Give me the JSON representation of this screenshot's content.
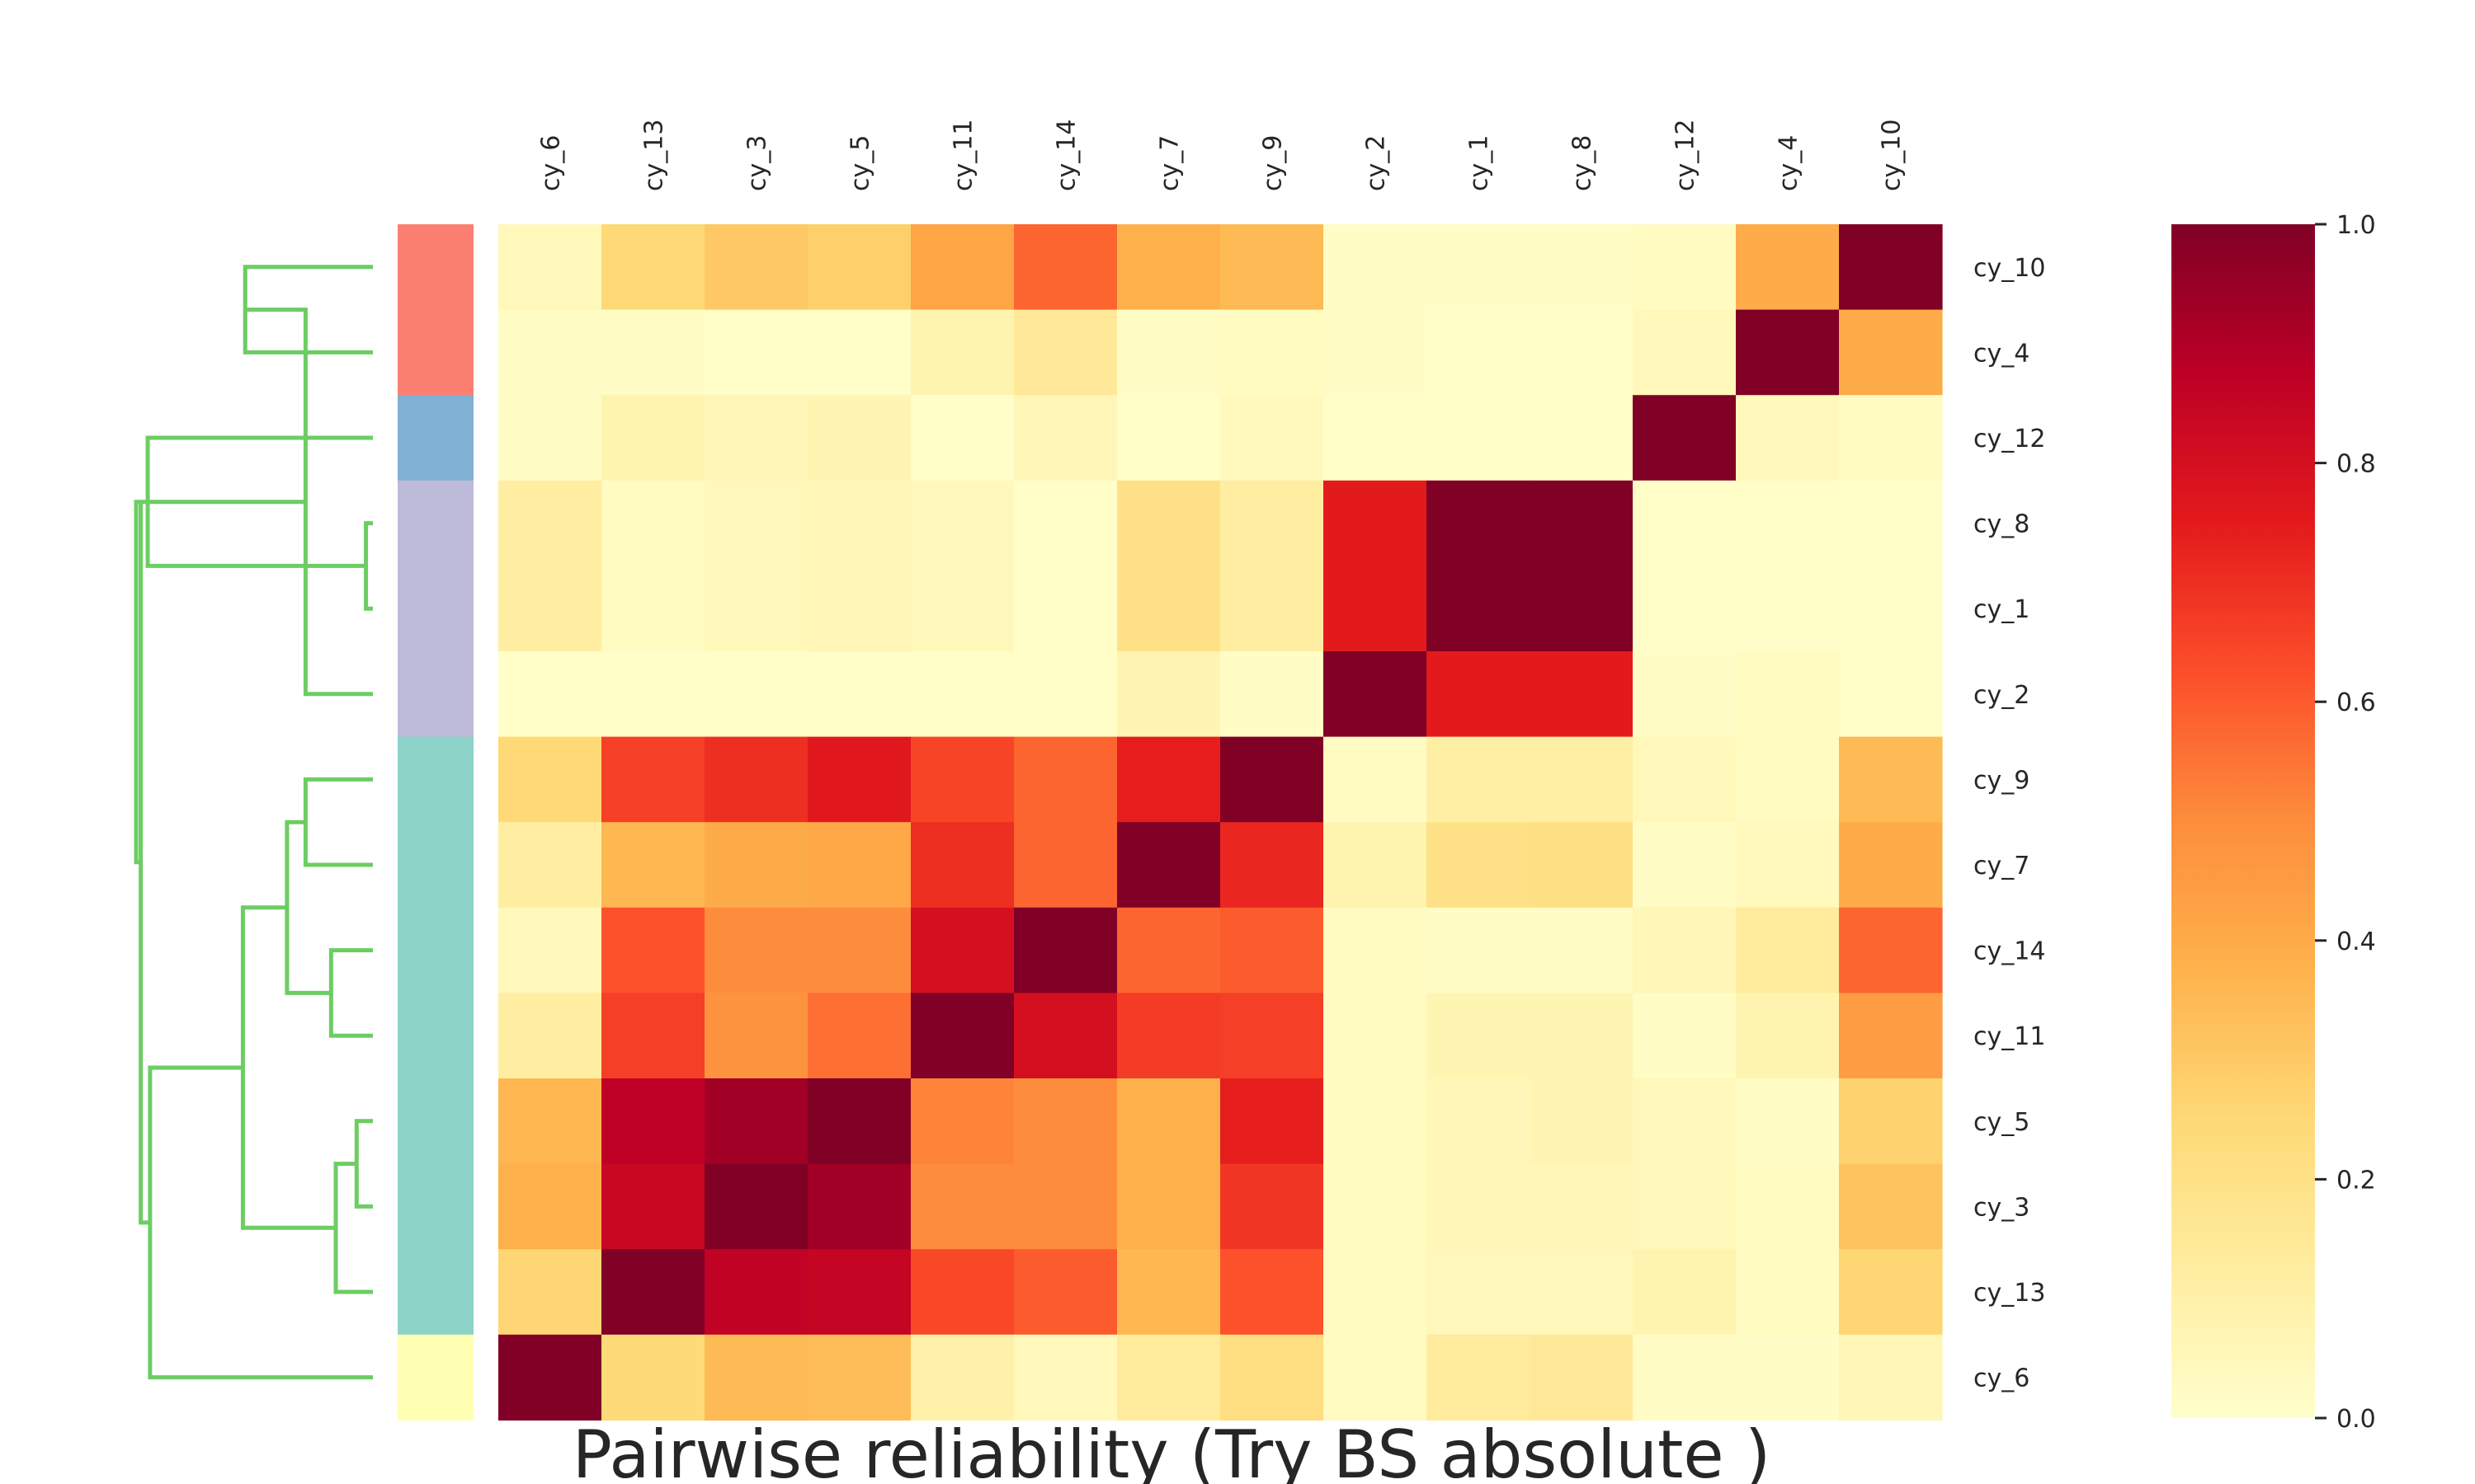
{
  "chart_data": {
    "type": "heatmap",
    "title": "Pairwise reliability (Try BS absolute )",
    "columns": [
      "cy_6",
      "cy_13",
      "cy_3",
      "cy_5",
      "cy_11",
      "cy_14",
      "cy_7",
      "cy_9",
      "cy_2",
      "cy_1",
      "cy_8",
      "cy_12",
      "cy_4",
      "cy_10"
    ],
    "rows": [
      "cy_10",
      "cy_4",
      "cy_12",
      "cy_8",
      "cy_1",
      "cy_2",
      "cy_9",
      "cy_7",
      "cy_14",
      "cy_11",
      "cy_5",
      "cy_3",
      "cy_13",
      "cy_6"
    ],
    "values": [
      [
        0.05,
        0.25,
        0.3,
        0.28,
        0.42,
        0.58,
        0.38,
        0.35,
        0.02,
        0.02,
        0.02,
        0.03,
        0.4,
        1.0
      ],
      [
        0.02,
        0.02,
        0.01,
        0.01,
        0.08,
        0.15,
        0.02,
        0.03,
        0.02,
        0.01,
        0.01,
        0.05,
        1.0,
        0.4
      ],
      [
        0.02,
        0.08,
        0.06,
        0.07,
        0.01,
        0.06,
        0.01,
        0.04,
        0.01,
        0.01,
        0.01,
        1.0,
        0.05,
        0.03
      ],
      [
        0.12,
        0.03,
        0.05,
        0.06,
        0.05,
        0.01,
        0.2,
        0.12,
        0.75,
        1.0,
        1.0,
        0.01,
        0.01,
        0.01
      ],
      [
        0.12,
        0.03,
        0.05,
        0.06,
        0.05,
        0.01,
        0.2,
        0.12,
        0.75,
        1.0,
        1.0,
        0.01,
        0.01,
        0.01
      ],
      [
        0.01,
        0.01,
        0.01,
        0.01,
        0.01,
        0.01,
        0.07,
        0.02,
        1.0,
        0.75,
        0.75,
        0.02,
        0.03,
        0.01
      ],
      [
        0.25,
        0.66,
        0.7,
        0.76,
        0.65,
        0.58,
        0.74,
        1.0,
        0.03,
        0.11,
        0.11,
        0.05,
        0.03,
        0.35
      ],
      [
        0.12,
        0.36,
        0.4,
        0.41,
        0.7,
        0.58,
        1.0,
        0.72,
        0.08,
        0.2,
        0.21,
        0.02,
        0.04,
        0.4
      ],
      [
        0.05,
        0.62,
        0.5,
        0.5,
        0.8,
        1.0,
        0.58,
        0.6,
        0.03,
        0.02,
        0.02,
        0.06,
        0.14,
        0.58
      ],
      [
        0.12,
        0.66,
        0.48,
        0.56,
        1.0,
        0.8,
        0.67,
        0.66,
        0.03,
        0.07,
        0.07,
        0.02,
        0.08,
        0.45
      ],
      [
        0.36,
        0.87,
        0.93,
        1.0,
        0.52,
        0.5,
        0.38,
        0.74,
        0.03,
        0.06,
        0.07,
        0.05,
        0.02,
        0.27
      ],
      [
        0.38,
        0.84,
        1.0,
        0.93,
        0.5,
        0.5,
        0.38,
        0.68,
        0.03,
        0.06,
        0.06,
        0.05,
        0.03,
        0.32
      ],
      [
        0.26,
        1.0,
        0.86,
        0.85,
        0.64,
        0.6,
        0.36,
        0.62,
        0.03,
        0.05,
        0.05,
        0.08,
        0.03,
        0.26
      ],
      [
        1.0,
        0.24,
        0.35,
        0.34,
        0.1,
        0.05,
        0.14,
        0.22,
        0.03,
        0.14,
        0.15,
        0.02,
        0.02,
        0.06
      ]
    ],
    "row_colors": [
      "#fb8072",
      "#fb8072",
      "#80b1d3",
      "#bebada",
      "#bebada",
      "#bebada",
      "#8dd3c7",
      "#8dd3c7",
      "#8dd3c7",
      "#8dd3c7",
      "#8dd3c7",
      "#8dd3c7",
      "#8dd3c7",
      "#ffffb3"
    ],
    "colorbar": {
      "ticks": [
        0.0,
        0.2,
        0.4,
        0.6,
        0.8,
        1.0
      ],
      "tick_labels": [
        "0.0",
        "0.2",
        "0.4",
        "0.6",
        "0.8",
        "1.0"
      ],
      "vmin": 0,
      "vmax": 1
    },
    "colormap_name": "YlOrRd",
    "colormap": [
      "#ffffcc",
      "#ffeda0",
      "#fed976",
      "#feb24c",
      "#fd8d3c",
      "#fc4e2a",
      "#e31a1c",
      "#bd0026",
      "#800026"
    ],
    "dendrogram_color": "#6ccd62",
    "dendrogram_merges": [
      [
        0,
        1,
        0.55
      ],
      [
        3,
        4,
        0.03
      ],
      [
        14,
        5,
        0.29
      ],
      [
        6,
        7,
        0.29
      ],
      [
        8,
        9,
        0.18
      ],
      [
        17,
        18,
        0.37
      ],
      [
        10,
        11,
        0.07
      ],
      [
        20,
        12,
        0.16
      ],
      [
        19,
        21,
        0.56
      ],
      [
        22,
        13,
        0.96
      ],
      [
        15,
        2,
        0.97
      ],
      [
        16,
        23,
        1.0
      ],
      [
        24,
        25,
        1.02
      ]
    ],
    "grid": false,
    "legend": "none"
  }
}
